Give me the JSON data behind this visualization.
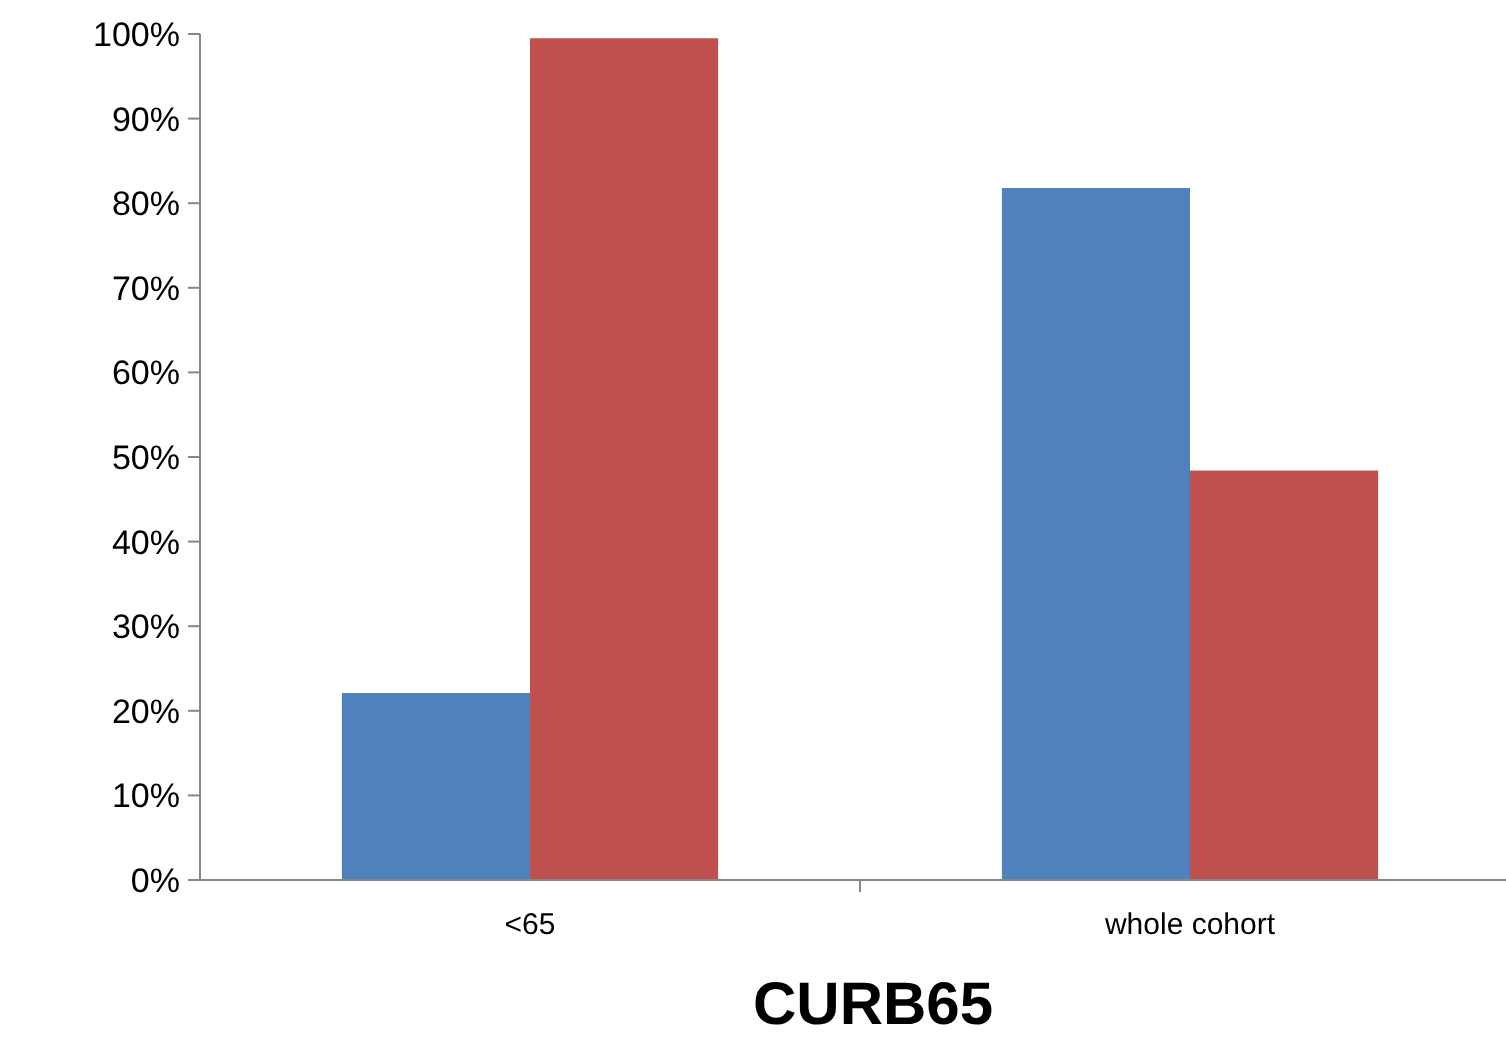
{
  "chart_data": {
    "type": "bar",
    "xlabel": "CURB65",
    "categories": [
      "<65",
      "whole cohort"
    ],
    "series": [
      {
        "color": "#4f81bd",
        "values": [
          22.1,
          81.8
        ]
      },
      {
        "color": "#c0504d",
        "values": [
          99.5,
          48.4
        ]
      }
    ],
    "ylim": [
      0,
      100
    ],
    "yticks": [
      {
        "value": 0,
        "label": "0%"
      },
      {
        "value": 10,
        "label": "10%"
      },
      {
        "value": 20,
        "label": "20%"
      },
      {
        "value": 30,
        "label": "30%"
      },
      {
        "value": 40,
        "label": "40%"
      },
      {
        "value": 50,
        "label": "50%"
      },
      {
        "value": 60,
        "label": "60%"
      },
      {
        "value": 70,
        "label": "70%"
      },
      {
        "value": 80,
        "label": "80%"
      },
      {
        "value": 90,
        "label": "90%"
      },
      {
        "value": 100,
        "label": "100%"
      }
    ],
    "grid": false
  }
}
